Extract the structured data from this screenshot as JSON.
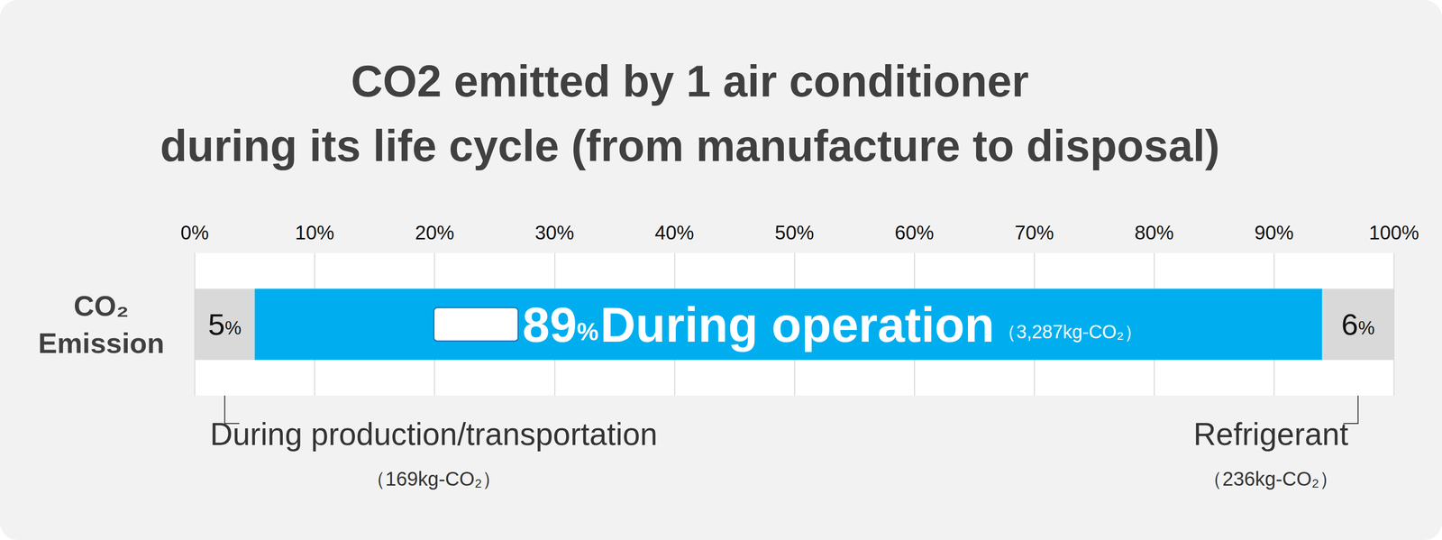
{
  "chart_data": {
    "type": "bar",
    "orientation": "horizontal",
    "stacked": true,
    "data_labels": true,
    "grid": true,
    "title": "CO2 emitted by 1 air conditioner\nduring its life cycle (from manufacture to disposal)",
    "categories": [
      "CO₂ Emission"
    ],
    "xlim": [
      0,
      100
    ],
    "xticks": [
      {
        "value": 0,
        "label": "0%"
      },
      {
        "value": 10,
        "label": "10%"
      },
      {
        "value": 20,
        "label": "20%"
      },
      {
        "value": 30,
        "label": "30%"
      },
      {
        "value": 40,
        "label": "40%"
      },
      {
        "value": 50,
        "label": "50%"
      },
      {
        "value": 60,
        "label": "60%"
      },
      {
        "value": 70,
        "label": "70%"
      },
      {
        "value": 80,
        "label": "80%"
      },
      {
        "value": 90,
        "label": "90%"
      },
      {
        "value": 100,
        "label": "100%"
      }
    ],
    "series": [
      {
        "name": "During production/transportation",
        "color": "#d9d9d9",
        "values": [
          5
        ],
        "value_labels": [
          "5%"
        ],
        "emission_labels": [
          "（169kg-CO₂）"
        ]
      },
      {
        "name": "During operation",
        "color": "#00aeef",
        "values": [
          89
        ],
        "value_labels": [
          "89%"
        ],
        "emission_labels": [
          "（3,287kg-CO₂）"
        ]
      },
      {
        "name": "Refrigerant",
        "color": "#d9d9d9",
        "values": [
          6
        ],
        "value_labels": [
          "6%"
        ],
        "emission_labels": [
          "（236kg-CO₂）"
        ]
      }
    ]
  }
}
